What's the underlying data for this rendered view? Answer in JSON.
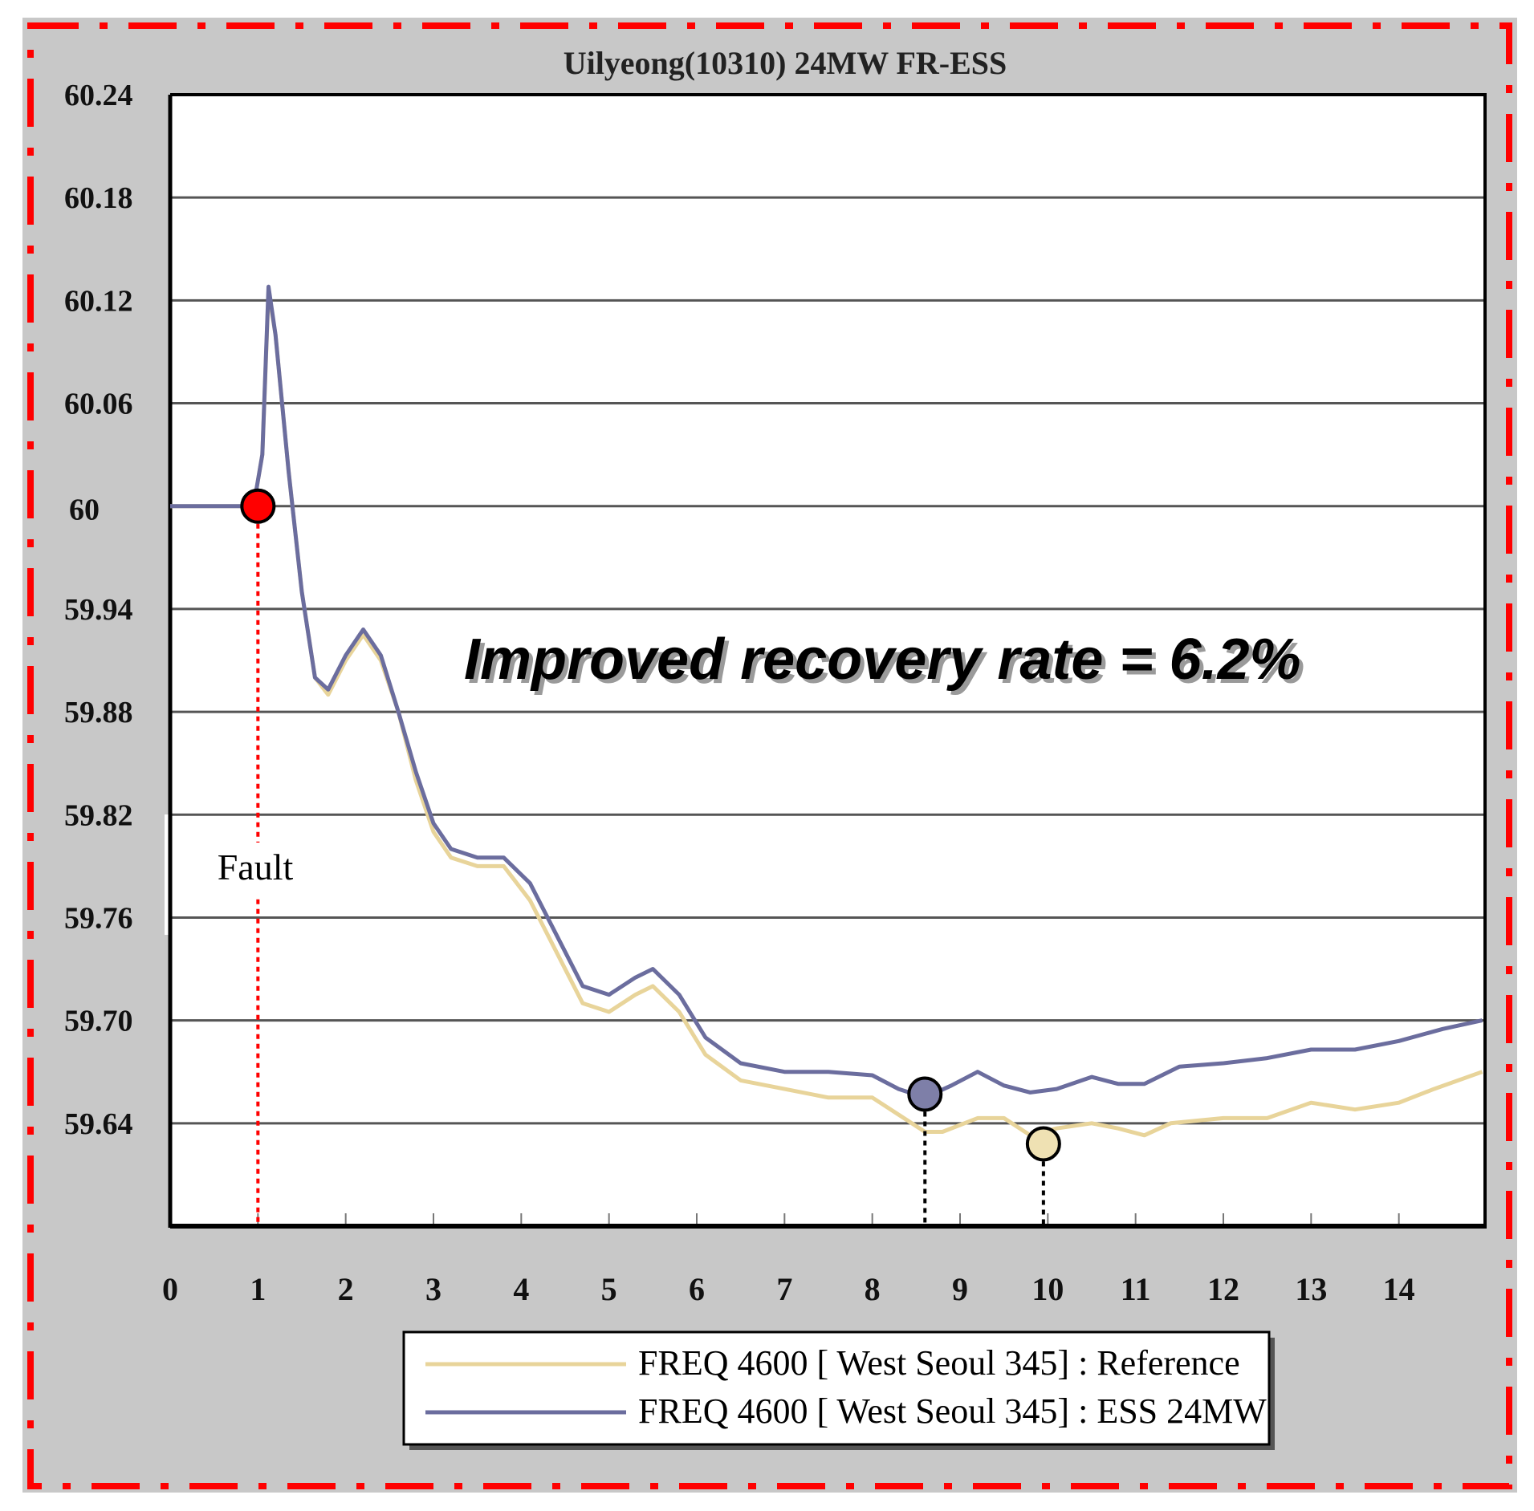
{
  "chart_data": {
    "type": "line",
    "title": "Uilyeong(10310) 24MW FR-ESS",
    "xlabel": "",
    "ylabel": "",
    "xlim": [
      0,
      15
    ],
    "ylim": [
      59.58,
      60.24
    ],
    "x_ticks": [
      "0",
      "1",
      "2",
      "3",
      "4",
      "5",
      "6",
      "7",
      "8",
      "9",
      "10",
      "11",
      "12",
      "13",
      "14"
    ],
    "y_ticks": [
      "60.24",
      "60.18",
      "60.12",
      "60.06",
      "60",
      "59.94",
      "59.88",
      "59.82",
      "59.76",
      "59.70",
      "59.64"
    ],
    "y_tick_values": [
      60.24,
      60.18,
      60.12,
      60.06,
      60.0,
      59.94,
      59.88,
      59.82,
      59.76,
      59.7,
      59.64
    ],
    "grid": true,
    "legend_position": "bottom-center",
    "series": [
      {
        "name": "FREQ 4600 [ West Seoul 345] : Reference",
        "color": "#e8d49a",
        "points": [
          [
            0,
            60.0
          ],
          [
            0.95,
            60.0
          ],
          [
            1.05,
            60.03
          ],
          [
            1.12,
            60.125
          ],
          [
            1.2,
            60.1
          ],
          [
            1.35,
            60.02
          ],
          [
            1.5,
            59.95
          ],
          [
            1.65,
            59.9
          ],
          [
            1.8,
            59.89
          ],
          [
            2.0,
            59.91
          ],
          [
            2.2,
            59.925
          ],
          [
            2.4,
            59.91
          ],
          [
            2.6,
            59.88
          ],
          [
            2.8,
            59.84
          ],
          [
            3.0,
            59.81
          ],
          [
            3.2,
            59.795
          ],
          [
            3.5,
            59.79
          ],
          [
            3.8,
            59.79
          ],
          [
            4.1,
            59.77
          ],
          [
            4.4,
            59.74
          ],
          [
            4.7,
            59.71
          ],
          [
            5.0,
            59.705
          ],
          [
            5.3,
            59.715
          ],
          [
            5.5,
            59.72
          ],
          [
            5.8,
            59.705
          ],
          [
            6.1,
            59.68
          ],
          [
            6.5,
            59.665
          ],
          [
            7.0,
            59.66
          ],
          [
            7.5,
            59.655
          ],
          [
            8.0,
            59.655
          ],
          [
            8.3,
            59.645
          ],
          [
            8.6,
            59.635
          ],
          [
            8.8,
            59.635
          ],
          [
            9.2,
            59.643
          ],
          [
            9.5,
            59.643
          ],
          [
            9.8,
            59.633
          ],
          [
            10.1,
            59.637
          ],
          [
            10.5,
            59.64
          ],
          [
            10.8,
            59.637
          ],
          [
            11.1,
            59.633
          ],
          [
            11.4,
            59.64
          ],
          [
            12.0,
            59.643
          ],
          [
            12.5,
            59.643
          ],
          [
            13.0,
            59.652
          ],
          [
            13.5,
            59.648
          ],
          [
            14.0,
            59.652
          ],
          [
            14.4,
            59.66
          ],
          [
            14.95,
            59.67
          ]
        ]
      },
      {
        "name": "FREQ 4600 [ West Seoul 345] : ESS 24MW",
        "color": "#6b6d9e",
        "points": [
          [
            0,
            60.0
          ],
          [
            0.95,
            60.0
          ],
          [
            1.05,
            60.03
          ],
          [
            1.12,
            60.128
          ],
          [
            1.2,
            60.1
          ],
          [
            1.35,
            60.02
          ],
          [
            1.5,
            59.95
          ],
          [
            1.65,
            59.9
          ],
          [
            1.8,
            59.893
          ],
          [
            2.0,
            59.913
          ],
          [
            2.2,
            59.928
          ],
          [
            2.4,
            59.913
          ],
          [
            2.6,
            59.88
          ],
          [
            2.8,
            59.845
          ],
          [
            3.0,
            59.815
          ],
          [
            3.2,
            59.8
          ],
          [
            3.5,
            59.795
          ],
          [
            3.8,
            59.795
          ],
          [
            4.1,
            59.78
          ],
          [
            4.4,
            59.75
          ],
          [
            4.7,
            59.72
          ],
          [
            5.0,
            59.715
          ],
          [
            5.3,
            59.725
          ],
          [
            5.5,
            59.73
          ],
          [
            5.8,
            59.715
          ],
          [
            6.1,
            59.69
          ],
          [
            6.5,
            59.675
          ],
          [
            7.0,
            59.67
          ],
          [
            7.5,
            59.67
          ],
          [
            8.0,
            59.668
          ],
          [
            8.3,
            59.66
          ],
          [
            8.6,
            59.655
          ],
          [
            8.9,
            59.662
          ],
          [
            9.2,
            59.67
          ],
          [
            9.5,
            59.662
          ],
          [
            9.8,
            59.658
          ],
          [
            10.1,
            59.66
          ],
          [
            10.5,
            59.667
          ],
          [
            10.8,
            59.663
          ],
          [
            11.1,
            59.663
          ],
          [
            11.5,
            59.673
          ],
          [
            12.0,
            59.675
          ],
          [
            12.5,
            59.678
          ],
          [
            13.0,
            59.683
          ],
          [
            13.5,
            59.683
          ],
          [
            14.0,
            59.688
          ],
          [
            14.5,
            59.695
          ],
          [
            14.95,
            59.7
          ]
        ]
      }
    ],
    "markers": [
      {
        "name": "fault-marker",
        "x": 1.0,
        "y": 60.0,
        "color": "#ff0000"
      },
      {
        "name": "ess-minimum-marker",
        "x": 8.6,
        "y": 59.657,
        "color": "#7e7fa8"
      },
      {
        "name": "reference-minimum-marker",
        "x": 9.95,
        "y": 59.628,
        "color": "#efe1b3"
      }
    ],
    "annotations": {
      "recovery_text": "Improved recovery rate  =  6.2%",
      "fault_label": "Fault"
    }
  }
}
